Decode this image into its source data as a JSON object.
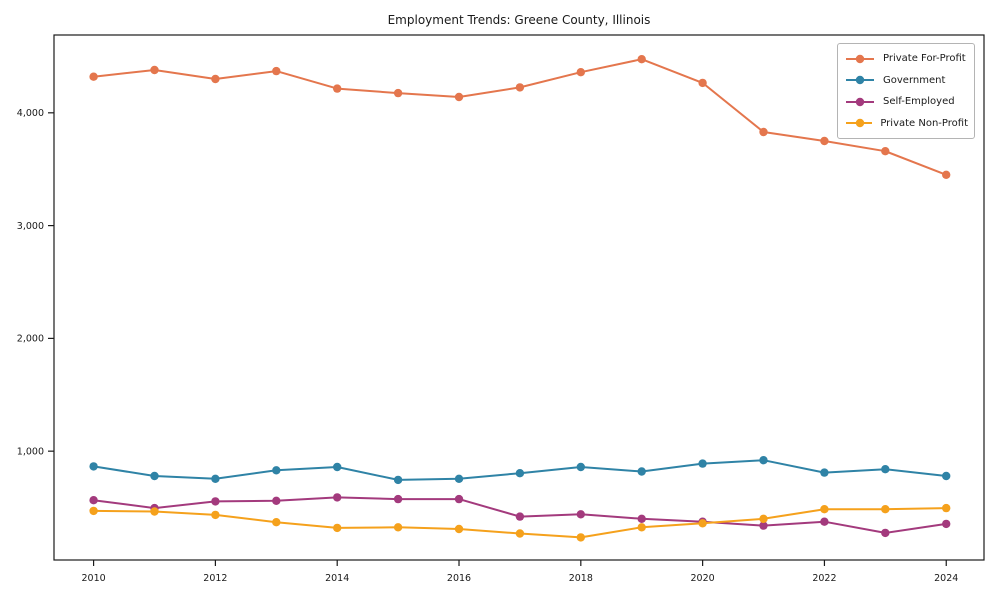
{
  "chart_data": {
    "type": "line",
    "title": "Employment Trends: Greene County, Illinois",
    "xlabel": "",
    "ylabel": "",
    "x": [
      2010,
      2011,
      2012,
      2013,
      2014,
      2015,
      2016,
      2017,
      2018,
      2019,
      2020,
      2021,
      2022,
      2023,
      2024
    ],
    "series": [
      {
        "name": "Private For-Profit",
        "color": "#e4764d",
        "values": [
          4320,
          4380,
          4300,
          4370,
          4215,
          4175,
          4140,
          4225,
          4360,
          4475,
          4265,
          3830,
          3750,
          3660,
          3450
        ]
      },
      {
        "name": "Government",
        "color": "#2f83a6",
        "values": [
          865,
          780,
          755,
          830,
          860,
          745,
          755,
          805,
          860,
          820,
          890,
          920,
          810,
          840,
          780
        ]
      },
      {
        "name": "Self-Employed",
        "color": "#a33a7d",
        "values": [
          565,
          495,
          555,
          560,
          590,
          575,
          575,
          420,
          440,
          400,
          375,
          340,
          375,
          275,
          355
        ]
      },
      {
        "name": "Private Non-Profit",
        "color": "#f5a11c",
        "values": [
          470,
          465,
          435,
          370,
          320,
          325,
          310,
          270,
          235,
          325,
          360,
          400,
          485,
          485,
          495
        ]
      }
    ],
    "xlim": [
      2009.35,
      2024.62
    ],
    "ylim": [
      35,
      4690
    ],
    "x_ticks": [
      2010,
      2012,
      2014,
      2016,
      2018,
      2020,
      2022,
      2024
    ],
    "x_tick_labels": [
      "2010",
      "2012",
      "2014",
      "2016",
      "2018",
      "2020",
      "2022",
      "2024"
    ],
    "y_ticks": [
      1000,
      2000,
      3000,
      4000
    ],
    "y_tick_labels": [
      "1,000",
      "2,000",
      "3,000",
      "4,000"
    ],
    "grid": false,
    "legend_position": "upper right",
    "marker": "circle",
    "axis_color": "#1a1a1a"
  }
}
